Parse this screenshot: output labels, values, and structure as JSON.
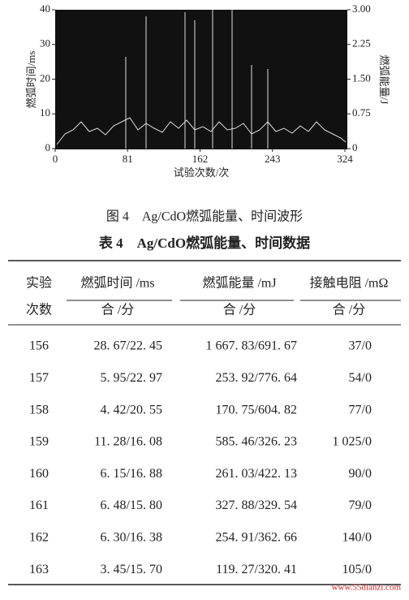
{
  "figure": {
    "ylabel": "燃弧时间/ms",
    "y2label": "燃弧能量/J",
    "xlabel": "试验次数/次",
    "xlim": [
      0,
      324
    ],
    "xticks": [
      0,
      81,
      162,
      243,
      324
    ],
    "ylim": [
      0,
      40
    ],
    "yticks": [
      0,
      10,
      20,
      30,
      40
    ],
    "y2lim": [
      0,
      3
    ],
    "y2ticks": [
      0,
      {
        "value": 0.75,
        "label": "0.75"
      },
      {
        "value": 1.5,
        "label": "1.50"
      },
      {
        "value": 2.25,
        "label": "2.25"
      },
      {
        "value": 3,
        "label": "3.00"
      }
    ],
    "caption": "图 4　Ag/CdO燃弧能量、时间波形"
  },
  "table": {
    "title": "表 4　Ag/CdO燃弧能量、时间数据",
    "header": [
      "实验",
      "燃弧时间 /ms",
      "燃弧能量 /mJ",
      "接触电阻 /mΩ"
    ],
    "subheader": [
      "次数",
      "合 /分",
      "合 /分",
      "合 /分"
    ],
    "rows": [
      [
        "156",
        "28. 67/22. 45",
        "1 667. 83/691. 67",
        "37/0"
      ],
      [
        "157",
        "5. 95/22. 97",
        "253. 92/776. 64",
        "54/0"
      ],
      [
        "158",
        "4. 42/20. 55",
        "170. 75/604. 82",
        "77/0"
      ],
      [
        "159",
        "11. 28/16. 08",
        "585. 46/326. 23",
        "1 025/0"
      ],
      [
        "160",
        "6. 15/16. 88",
        "261. 03/422. 13",
        "90/0"
      ],
      [
        "161",
        "6. 48/15. 80",
        "327. 88/329. 54",
        "79/0"
      ],
      [
        "162",
        "6. 30/16. 38",
        "254. 91/362. 66",
        "140/0"
      ],
      [
        "163",
        "3. 45/15. 70",
        "119. 27/320. 41",
        "105/0"
      ]
    ]
  },
  "watermark": "www.55dianzi.com"
}
